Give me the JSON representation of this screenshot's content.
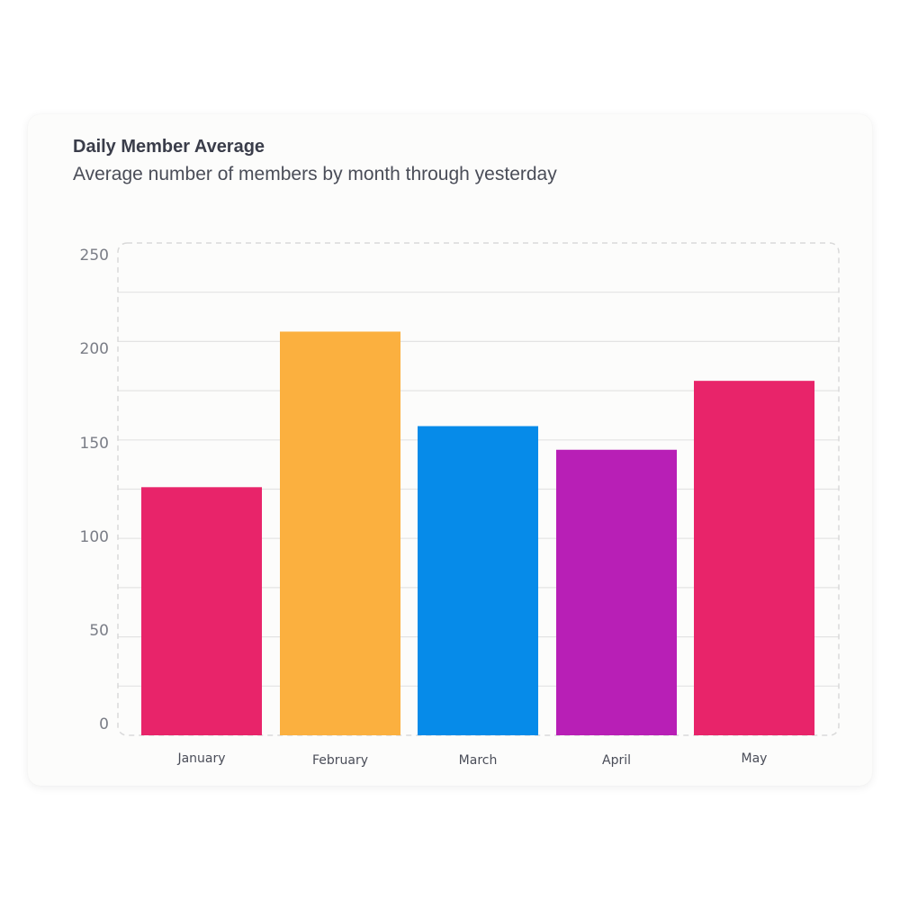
{
  "chart_data": {
    "type": "bar",
    "title": "Daily Member Average",
    "subtitle": "Average number of members by month through yesterday",
    "xlabel": "",
    "ylabel": "",
    "categories": [
      "January",
      "February",
      "March",
      "April",
      "May"
    ],
    "values": [
      126,
      205,
      157,
      145,
      180
    ],
    "ylim": [
      0,
      250
    ],
    "yticks": [
      0,
      50,
      100,
      150,
      200,
      250
    ],
    "grid": true,
    "legend": "none",
    "colors": [
      "#e8246a",
      "#fbb03f",
      "#068be9",
      "#b81fb6",
      "#e8246a"
    ]
  }
}
